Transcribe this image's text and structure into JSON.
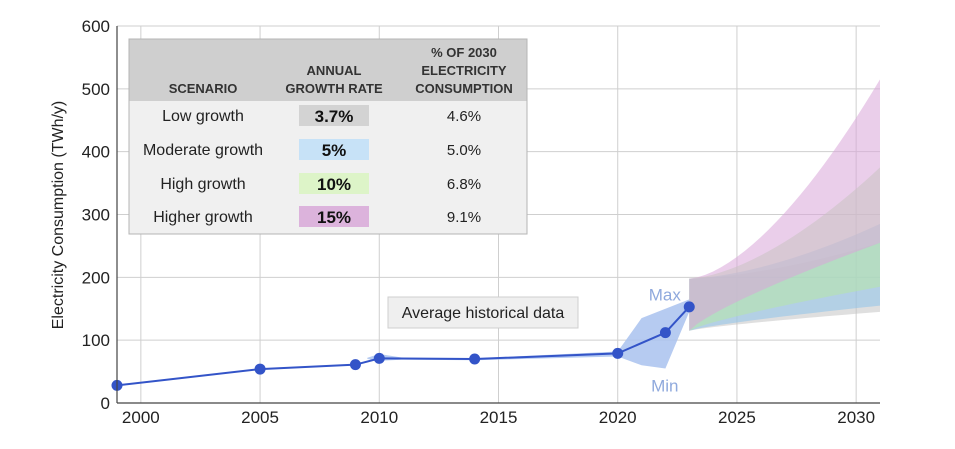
{
  "chart_data": {
    "type": "line",
    "title": "",
    "xlabel": "",
    "ylabel": "Electricity Consumption (TWh/y)",
    "xlim": [
      1999,
      2031
    ],
    "ylim": [
      0,
      600
    ],
    "x_ticks": [
      "2000",
      "2005",
      "2010",
      "2015",
      "2020",
      "2025",
      "2030"
    ],
    "y_ticks": [
      "0",
      "100",
      "200",
      "300",
      "400",
      "500",
      "600"
    ],
    "grid": true,
    "series": [
      {
        "name": "Average historical data",
        "color": "#3354c8",
        "points": [
          {
            "x": 1999,
            "y": 28
          },
          {
            "x": 2005,
            "y": 54
          },
          {
            "x": 2009,
            "y": 61
          },
          {
            "x": 2010,
            "y": 71
          },
          {
            "x": 2014,
            "y": 70
          },
          {
            "x": 2020,
            "y": 79
          },
          {
            "x": 2022,
            "y": 112
          },
          {
            "x": 2023,
            "y": 153
          }
        ]
      }
    ],
    "historical_range": {
      "color": "#a9c2ef",
      "upper": [
        {
          "x": 2009.5,
          "y": 72
        },
        {
          "x": 2010,
          "y": 78
        },
        {
          "x": 2011,
          "y": 72
        },
        {
          "x": 2014,
          "y": 71
        },
        {
          "x": 2020,
          "y": 82
        },
        {
          "x": 2021,
          "y": 135
        },
        {
          "x": 2022,
          "y": 150
        },
        {
          "x": 2023,
          "y": 165
        }
      ],
      "lower": [
        {
          "x": 2023,
          "y": 145
        },
        {
          "x": 2022,
          "y": 55
        },
        {
          "x": 2021,
          "y": 60
        },
        {
          "x": 2020,
          "y": 74
        },
        {
          "x": 2014,
          "y": 68
        },
        {
          "x": 2011,
          "y": 69
        },
        {
          "x": 2010,
          "y": 67
        },
        {
          "x": 2009.5,
          "y": 70
        }
      ],
      "max_label": "Max",
      "min_label": "Min"
    },
    "projections": [
      {
        "scenario": "Low growth",
        "color": "#c4c4c4",
        "start": 2023,
        "end": 2031,
        "min_2031": 145,
        "max_2031": 255
      },
      {
        "scenario": "Moderate growth",
        "color": "#8ec3ea",
        "start": 2023,
        "end": 2031,
        "min_2031": 155,
        "max_2031": 285
      },
      {
        "scenario": "High growth",
        "color": "#b6e6a8",
        "start": 2023,
        "end": 2031,
        "min_2031": 185,
        "max_2031": 375
      },
      {
        "scenario": "Higher growth",
        "color": "#d9a6d9",
        "start": 2023,
        "end": 2031,
        "min_2031": 255,
        "max_2031": 515
      }
    ],
    "annotation": "Average historical data",
    "table": {
      "headers": {
        "scenario": "SCENARIO",
        "rate_line1": "ANNUAL",
        "rate_line2": "GROWTH RATE",
        "pct_line1": "% OF 2030",
        "pct_line2": "ELECTRICITY",
        "pct_line3": "CONSUMPTION"
      },
      "rows": [
        {
          "scenario": "Low growth",
          "rate": "3.7%",
          "pct": "4.6%",
          "color": "#d3d3d3"
        },
        {
          "scenario": "Moderate growth",
          "rate": "5%",
          "pct": "5.0%",
          "color": "#c7e2f7"
        },
        {
          "scenario": "High growth",
          "rate": "10%",
          "pct": "6.8%",
          "color": "#ddf4c8"
        },
        {
          "scenario": "Higher growth",
          "rate": "15%",
          "pct": "9.1%",
          "color": "#dcb3dc"
        }
      ]
    }
  }
}
